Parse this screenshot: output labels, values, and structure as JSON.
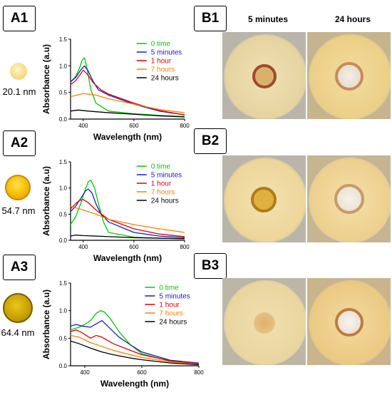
{
  "panels": {
    "A1": {
      "badge": "A1",
      "size": "20.1 nm"
    },
    "A2": {
      "badge": "A2",
      "size": "54.7 nm"
    },
    "A3": {
      "badge": "A3",
      "size": "64.4 nm"
    },
    "B1": {
      "badge": "B1"
    },
    "B2": {
      "badge": "B2"
    },
    "B3": {
      "badge": "B3"
    }
  },
  "column_headers": {
    "left": "5 minutes",
    "right": "24 hours"
  },
  "colors": {
    "0 time": "#00cc00",
    "5 minutes": "#1a1acc",
    "1 hour": "#e00000",
    "7 hours": "#ff7f00",
    "24 hours": "#000000"
  },
  "chart_data": [
    {
      "type": "line",
      "xlabel": "Wavelength (nm)",
      "ylabel": "Absorbance (a.u)",
      "xlim": [
        350,
        800
      ],
      "ylim": [
        0,
        1.5
      ],
      "xticks": [
        400,
        600,
        800
      ],
      "yticks": [
        0.0,
        0.5,
        1.0,
        1.5
      ],
      "series": [
        {
          "name": "0 time",
          "x": [
            350,
            370,
            385,
            395,
            405,
            415,
            430,
            450,
            500,
            600,
            700,
            800
          ],
          "y": [
            0.7,
            0.8,
            0.95,
            1.1,
            1.15,
            0.95,
            0.55,
            0.3,
            0.15,
            0.1,
            0.07,
            0.05
          ]
        },
        {
          "name": "5 minutes",
          "x": [
            350,
            370,
            390,
            405,
            420,
            440,
            460,
            500,
            600,
            700,
            800
          ],
          "y": [
            0.7,
            0.78,
            0.92,
            1.0,
            0.9,
            0.7,
            0.55,
            0.45,
            0.28,
            0.15,
            0.08
          ]
        },
        {
          "name": "1 hour",
          "x": [
            350,
            370,
            390,
            400,
            415,
            440,
            470,
            500,
            600,
            700,
            800
          ],
          "y": [
            0.65,
            0.72,
            0.85,
            0.92,
            0.85,
            0.68,
            0.55,
            0.47,
            0.3,
            0.16,
            0.08
          ]
        },
        {
          "name": "7 hours",
          "x": [
            350,
            400,
            450,
            500,
            600,
            700,
            800
          ],
          "y": [
            0.42,
            0.48,
            0.45,
            0.38,
            0.28,
            0.18,
            0.12
          ]
        },
        {
          "name": "24 hours",
          "x": [
            350,
            380,
            420,
            500,
            600,
            700,
            800
          ],
          "y": [
            0.15,
            0.17,
            0.15,
            0.12,
            0.09,
            0.06,
            0.04
          ]
        }
      ]
    },
    {
      "type": "line",
      "xlabel": "Wavelength (nm)",
      "ylabel": "Absorbance (a.u)",
      "xlim": [
        350,
        800
      ],
      "ylim": [
        0,
        1.5
      ],
      "xticks": [
        400,
        600,
        800
      ],
      "yticks": [
        0.0,
        0.5,
        1.0,
        1.5
      ],
      "series": [
        {
          "name": "0 time",
          "x": [
            350,
            370,
            390,
            410,
            420,
            430,
            445,
            460,
            480,
            500,
            600,
            700,
            800
          ],
          "y": [
            0.3,
            0.45,
            0.7,
            1.0,
            1.12,
            1.15,
            1.0,
            0.7,
            0.35,
            0.15,
            0.06,
            0.04,
            0.03
          ]
        },
        {
          "name": "5 minutes",
          "x": [
            350,
            370,
            390,
            410,
            420,
            435,
            450,
            470,
            500,
            600,
            700,
            800
          ],
          "y": [
            0.55,
            0.65,
            0.8,
            0.95,
            0.98,
            0.9,
            0.7,
            0.5,
            0.35,
            0.15,
            0.08,
            0.05
          ]
        },
        {
          "name": "1 hour",
          "x": [
            350,
            370,
            385,
            400,
            420,
            450,
            500,
            600,
            700,
            800
          ],
          "y": [
            0.6,
            0.7,
            0.76,
            0.78,
            0.72,
            0.58,
            0.4,
            0.22,
            0.12,
            0.07
          ]
        },
        {
          "name": "7 hours",
          "x": [
            350,
            400,
            450,
            500,
            600,
            700,
            800
          ],
          "y": [
            0.65,
            0.58,
            0.5,
            0.4,
            0.3,
            0.22,
            0.15
          ]
        },
        {
          "name": "24 hours",
          "x": [
            350,
            370,
            400,
            500,
            600,
            700,
            800
          ],
          "y": [
            0.08,
            0.1,
            0.09,
            0.07,
            0.05,
            0.04,
            0.03
          ]
        }
      ]
    },
    {
      "type": "line",
      "xlabel": "Wavelength (nm)",
      "ylabel": "Absorbance (a.u)",
      "xlim": [
        350,
        800
      ],
      "ylim": [
        0,
        1.5
      ],
      "xticks": [
        400,
        600,
        800
      ],
      "yticks": [
        0.0,
        0.5,
        1.0,
        1.5
      ],
      "series": [
        {
          "name": "0 time",
          "x": [
            350,
            380,
            400,
            420,
            440,
            455,
            470,
            490,
            520,
            560,
            600,
            700,
            800
          ],
          "y": [
            0.65,
            0.7,
            0.75,
            0.82,
            0.95,
            1.0,
            0.97,
            0.85,
            0.62,
            0.38,
            0.22,
            0.08,
            0.04
          ]
        },
        {
          "name": "5 minutes",
          "x": [
            350,
            370,
            390,
            420,
            440,
            460,
            480,
            520,
            560,
            600,
            700,
            800
          ],
          "y": [
            0.72,
            0.75,
            0.72,
            0.7,
            0.76,
            0.82,
            0.72,
            0.52,
            0.38,
            0.25,
            0.1,
            0.05
          ]
        },
        {
          "name": "1 hour",
          "x": [
            350,
            370,
            390,
            420,
            440,
            460,
            500,
            560,
            600,
            700,
            800
          ],
          "y": [
            0.62,
            0.65,
            0.6,
            0.5,
            0.55,
            0.52,
            0.4,
            0.28,
            0.2,
            0.09,
            0.04
          ]
        },
        {
          "name": "7 hours",
          "x": [
            350,
            380,
            420,
            460,
            500,
            560,
            600,
            700,
            800
          ],
          "y": [
            0.55,
            0.52,
            0.42,
            0.35,
            0.28,
            0.2,
            0.15,
            0.07,
            0.03
          ]
        },
        {
          "name": "24 hours",
          "x": [
            350,
            380,
            420,
            460,
            500,
            560,
            600,
            700,
            800
          ],
          "y": [
            0.45,
            0.4,
            0.32,
            0.25,
            0.2,
            0.14,
            0.11,
            0.05,
            0.02
          ]
        }
      ]
    }
  ]
}
